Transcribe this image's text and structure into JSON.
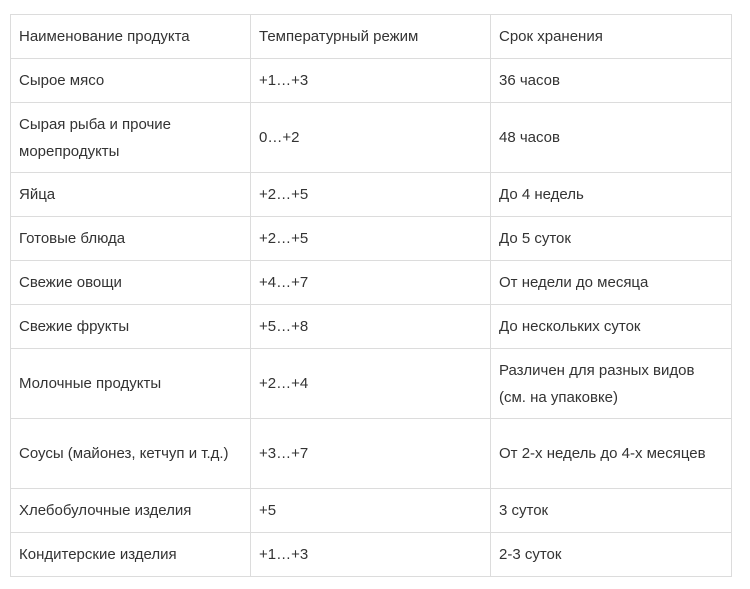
{
  "table": {
    "headers": [
      "Наименование продукта",
      "Температурный режим",
      "Срок хранения"
    ],
    "rows": [
      [
        "Сырое мясо",
        "+1…+3",
        "36 часов"
      ],
      [
        "Сырая рыба и прочие морепродукты",
        "0…+2",
        "48 часов"
      ],
      [
        "Яйца",
        "+2…+5",
        "До 4 недель"
      ],
      [
        "Готовые блюда",
        "+2…+5",
        "До 5 суток"
      ],
      [
        "Свежие овощи",
        "+4…+7",
        "От недели до месяца"
      ],
      [
        "Свежие фрукты",
        "+5…+8",
        "До нескольких суток"
      ],
      [
        "Молочные продукты",
        "+2…+4",
        "Различен для разных видов (см. на упаковке)"
      ],
      [
        "Соусы (майонез, кетчуп и т.д.)",
        "+3…+7",
        "От 2-х недель до 4-х месяцев"
      ],
      [
        "Хлебобулочные изделия",
        "+5",
        "3 суток"
      ],
      [
        "Кондитерские изделия",
        "+1…+3",
        "2-3 суток"
      ]
    ]
  }
}
